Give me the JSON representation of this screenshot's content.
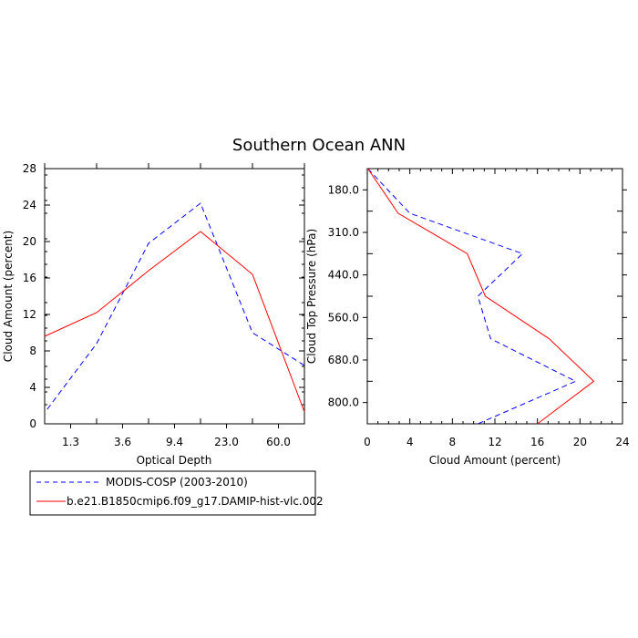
{
  "figure": {
    "title": "Southern Ocean ANN"
  },
  "chart_data": [
    {
      "type": "line",
      "title": "",
      "xlabel": "Optical Depth",
      "ylabel": "Cloud Amount (percent)",
      "x_tick_labels": [
        "1.3",
        "3.6",
        "9.4",
        "23.0",
        "60.0"
      ],
      "ylim": [
        0,
        28
      ],
      "y_ticks": [
        0,
        4,
        8,
        12,
        16,
        20,
        24,
        28
      ],
      "x_positions": [
        0,
        1,
        2,
        3,
        4,
        5
      ],
      "series": [
        {
          "name": "MODIS-COSP (2003-2010)",
          "color": "#0000ff",
          "dash": "dashed",
          "x": [
            0.05,
            1,
            2,
            3,
            4,
            5
          ],
          "y": [
            1.6,
            8.8,
            19.8,
            24.2,
            10.0,
            6.4
          ]
        },
        {
          "name": "b.e21.B1850cmip6.f09_g17.DAMIP-hist-vlc.002",
          "color": "#ff0000",
          "dash": "solid",
          "x": [
            0,
            1,
            2,
            3,
            4,
            5
          ],
          "y": [
            9.6,
            12.2,
            16.8,
            21.1,
            16.4,
            1.3
          ]
        }
      ]
    },
    {
      "type": "line",
      "title": "",
      "xlabel": "Cloud Amount (percent)",
      "ylabel": "Cloud Top Pressure (hPa)",
      "xlim": [
        0,
        24
      ],
      "x_ticks": [
        0,
        4,
        8,
        12,
        16,
        20,
        24
      ],
      "y_tick_labels": [
        "180.0",
        "310.0",
        "440.0",
        "560.0",
        "680.0",
        "800.0"
      ],
      "y_positions": [
        0,
        1,
        2,
        3,
        4,
        5,
        6,
        7
      ],
      "series": [
        {
          "name": "MODIS-COSP (2003-2010)",
          "color": "#0000ff",
          "dash": "dashed",
          "x": [
            0.05,
            4.0,
            14.6,
            10.4,
            11.6,
            19.6,
            10.4
          ],
          "y": [
            0,
            1.05,
            2.0,
            3.0,
            4.0,
            5.0,
            6.0
          ]
        },
        {
          "name": "b.e21.B1850cmip6.f09_g17.DAMIP-hist-vlc.002",
          "color": "#ff0000",
          "dash": "solid",
          "x": [
            0.05,
            2.9,
            9.4,
            11.1,
            17.1,
            21.3,
            16.0
          ],
          "y": [
            0,
            1.05,
            2.0,
            3.0,
            4.0,
            5.0,
            6.0
          ]
        }
      ]
    }
  ],
  "legend": {
    "placement": "bottom-left",
    "items": [
      {
        "label": "MODIS-COSP (2003-2010)",
        "color": "#0000ff",
        "dash": "dashed"
      },
      {
        "label": "b.e21.B1850cmip6.f09_g17.DAMIP-hist-vlc.002",
        "color": "#ff0000",
        "dash": "solid"
      }
    ]
  }
}
